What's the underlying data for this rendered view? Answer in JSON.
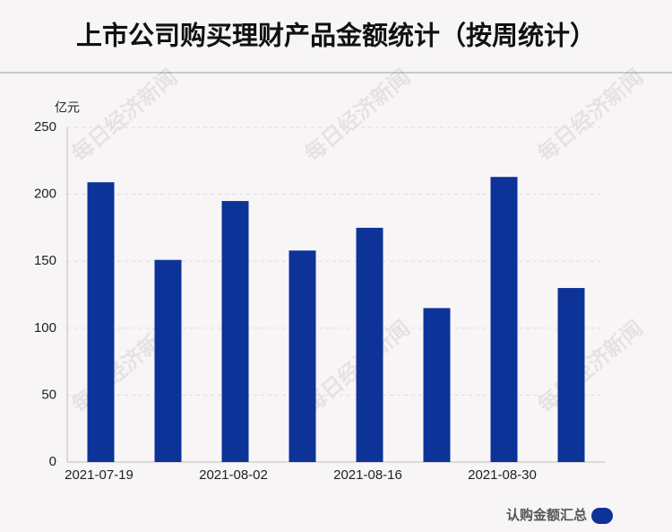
{
  "chart_data": {
    "type": "bar",
    "title": "上市公司购买理财产品金额统计（按周统计）",
    "y_unit": "亿元",
    "watermark": "每日经济新闻",
    "categories": [
      "2021-07-19",
      null,
      "2021-08-02",
      null,
      "2021-08-16",
      null,
      "2021-08-30",
      null
    ],
    "series": [
      {
        "name": "认购金额汇总",
        "color": "#0d3399",
        "values": [
          209,
          151,
          195,
          158,
          175,
          115,
          213,
          130
        ]
      }
    ],
    "ylim": [
      0,
      250
    ],
    "yticks": [
      0,
      50,
      100,
      150,
      200,
      250
    ],
    "grid": true,
    "legend": "bottom-right"
  }
}
